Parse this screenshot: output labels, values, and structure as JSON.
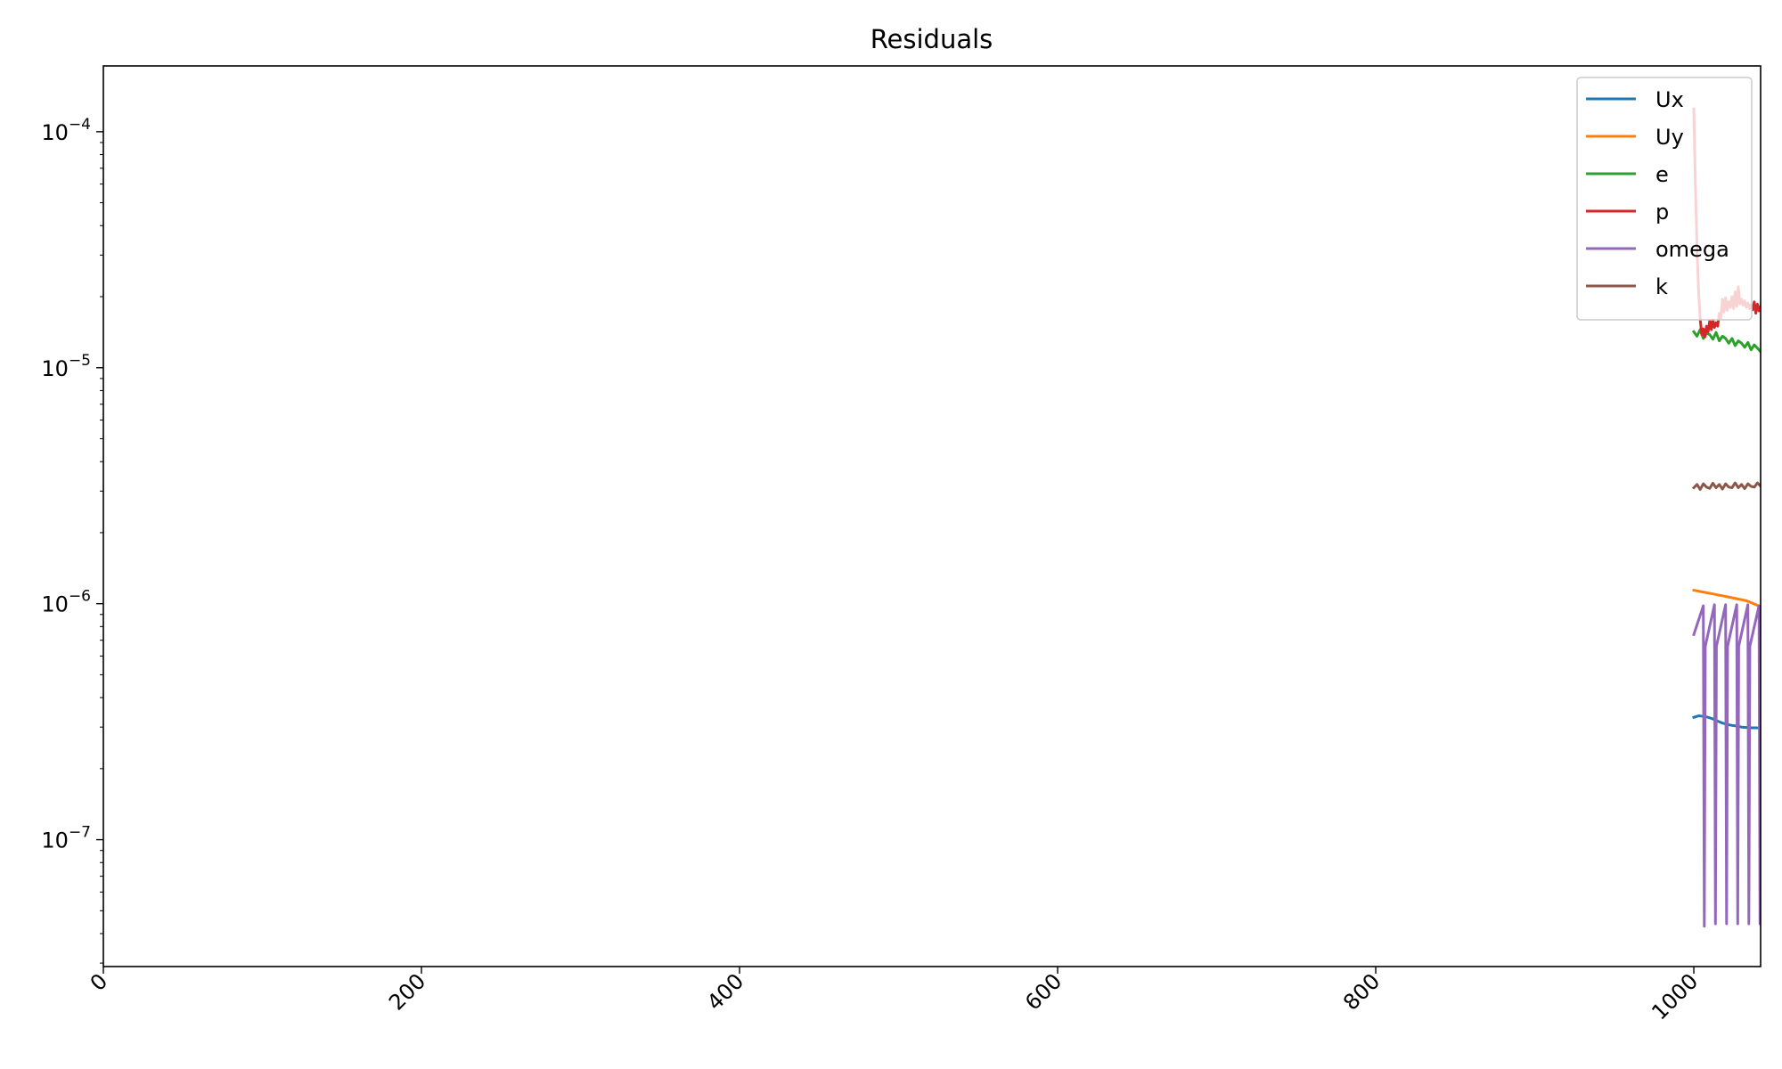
{
  "chart_data": {
    "type": "line",
    "title": "Residuals",
    "xlabel": "",
    "ylabel": "",
    "xlim": [
      0,
      1042
    ],
    "ylim": [
      2.9e-08,
      0.00019
    ],
    "yscale": "log",
    "grid": false,
    "legend_position": "top-right",
    "x_ticks": [
      "0",
      "200",
      "400",
      "600",
      "800",
      "1000"
    ],
    "y_ticks": [
      {
        "base": "10",
        "exp": "−4",
        "value": 0.0001
      },
      {
        "base": "10",
        "exp": "−5",
        "value": 1e-05
      },
      {
        "base": "10",
        "exp": "−6",
        "value": 1e-06
      },
      {
        "base": "10",
        "exp": "−7",
        "value": 1e-07
      }
    ],
    "series": [
      {
        "name": "Ux",
        "color": "#1f77b4",
        "x": [
          1000,
          1003,
          1006,
          1009,
          1012,
          1015,
          1018,
          1021,
          1024,
          1027,
          1030,
          1033,
          1036,
          1039,
          1042
        ],
        "y": [
          3.3e-07,
          3.35e-07,
          3.33e-07,
          3.3e-07,
          3.25e-07,
          3.18e-07,
          3.12e-07,
          3.08e-07,
          3.05e-07,
          3.03e-07,
          3e-07,
          2.99e-07,
          2.98e-07,
          2.98e-07,
          2.97e-07
        ]
      },
      {
        "name": "Uy",
        "color": "#ff7f0e",
        "x": [
          1000,
          1003,
          1006,
          1009,
          1012,
          1015,
          1018,
          1021,
          1024,
          1027,
          1030,
          1033,
          1036,
          1039,
          1042
        ],
        "y": [
          1.14e-06,
          1.13e-06,
          1.12e-06,
          1.11e-06,
          1.1e-06,
          1.09e-06,
          1.08e-06,
          1.07e-06,
          1.06e-06,
          1.05e-06,
          1.04e-06,
          1.03e-06,
          1.01e-06,
          9.9e-07,
          9.7e-07
        ]
      },
      {
        "name": "e",
        "color": "#2ca02c",
        "x": [
          1000,
          1002,
          1004,
          1006,
          1008,
          1010,
          1012,
          1014,
          1016,
          1018,
          1020,
          1022,
          1024,
          1026,
          1028,
          1030,
          1032,
          1034,
          1036,
          1038,
          1040,
          1042
        ],
        "y": [
          1.42e-05,
          1.36e-05,
          1.45e-05,
          1.33e-05,
          1.4e-05,
          1.38e-05,
          1.32e-05,
          1.41e-05,
          1.3e-05,
          1.36e-05,
          1.33e-05,
          1.27e-05,
          1.33e-05,
          1.24e-05,
          1.3e-05,
          1.27e-05,
          1.22e-05,
          1.28e-05,
          1.19e-05,
          1.25e-05,
          1.21e-05,
          1.17e-05
        ]
      },
      {
        "name": "p",
        "color": "#d62728",
        "x": [
          1000,
          1001,
          1002,
          1003,
          1004,
          1005,
          1006,
          1007,
          1008,
          1009,
          1010,
          1011,
          1012,
          1013,
          1014,
          1015,
          1016,
          1017,
          1018,
          1019,
          1020,
          1021,
          1022,
          1023,
          1024,
          1025,
          1026,
          1027,
          1028,
          1029,
          1030,
          1031,
          1032,
          1033,
          1034,
          1035,
          1036,
          1037,
          1038,
          1039,
          1040,
          1041,
          1042
        ],
        "y": [
          0.000125,
          6e-05,
          3.2e-05,
          2.1e-05,
          1.6e-05,
          1.38e-05,
          1.46e-05,
          1.35e-05,
          1.5e-05,
          1.42e-05,
          1.58e-05,
          1.45e-05,
          1.6e-05,
          1.48e-05,
          1.55e-05,
          1.5e-05,
          1.7e-05,
          1.62e-05,
          1.95e-05,
          1.72e-05,
          1.98e-05,
          1.75e-05,
          1.9e-05,
          1.8e-05,
          2e-05,
          1.78e-05,
          2.1e-05,
          1.82e-05,
          2.2e-05,
          1.86e-05,
          1.95e-05,
          1.84e-05,
          1.92e-05,
          1.8e-05,
          1.88e-05,
          1.78e-05,
          1.85e-05,
          1.76e-05,
          1.9e-05,
          1.7e-05,
          1.86e-05,
          1.74e-05,
          1.82e-05
        ]
      },
      {
        "name": "omega",
        "color": "#9467bd",
        "x": [
          1000,
          1006,
          1006.6,
          1007.2,
          1013,
          1013.6,
          1014.2,
          1020,
          1020.6,
          1021.2,
          1027,
          1027.6,
          1028.2,
          1034,
          1034.6,
          1035.2,
          1041,
          1041.6,
          1042
        ],
        "y": [
          7.4e-07,
          9.8e-07,
          4.3e-08,
          6.6e-07,
          9.9e-07,
          4.4e-08,
          6.6e-07,
          9.9e-07,
          4.4e-08,
          6.6e-07,
          9.9e-07,
          4.4e-08,
          6.6e-07,
          9.9e-07,
          4.4e-08,
          6.6e-07,
          9.8e-07,
          4.4e-08,
          6e-07
        ]
      },
      {
        "name": "k",
        "color": "#8c564b",
        "x": [
          1000,
          1002,
          1004,
          1006,
          1008,
          1010,
          1012,
          1014,
          1016,
          1018,
          1020,
          1022,
          1024,
          1026,
          1028,
          1030,
          1032,
          1034,
          1036,
          1038,
          1040,
          1042
        ],
        "y": [
          3.1e-06,
          3.2e-06,
          3.05e-06,
          3.22e-06,
          3.12e-06,
          3.08e-06,
          3.24e-06,
          3.1e-06,
          3.2e-06,
          3.06e-06,
          3.22e-06,
          3.12e-06,
          3.1e-06,
          3.25e-06,
          3.1e-06,
          3.2e-06,
          3.07e-06,
          3.22e-06,
          3.14e-06,
          3.12e-06,
          3.25e-06,
          3.15e-06
        ]
      }
    ]
  }
}
